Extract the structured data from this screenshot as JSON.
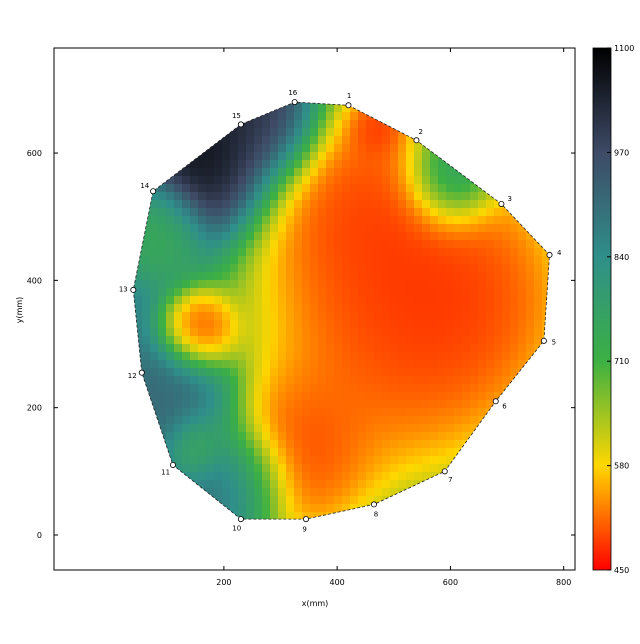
{
  "chart_data": {
    "type": "heatmap",
    "title": "",
    "xlabel": "x(mm)",
    "ylabel": "y(mm)",
    "xlim": [
      -100,
      820
    ],
    "ylim": [
      -55,
      765
    ],
    "x_ticks": [
      200,
      400,
      600,
      800
    ],
    "y_ticks": [
      0,
      200,
      400,
      600
    ],
    "grid": false,
    "colorbar": {
      "min": 450,
      "max": 1100,
      "ticks": [
        450,
        580,
        710,
        840,
        970,
        1100
      ],
      "colors": [
        "#ff0000",
        "#ffd700",
        "#3cb043",
        "#2f8f8a",
        "#3e4a66",
        "#000000"
      ]
    },
    "measurement_points": [
      {
        "label": "1",
        "x": 420,
        "y": 675
      },
      {
        "label": "2",
        "x": 540,
        "y": 620
      },
      {
        "label": "3",
        "x": 690,
        "y": 520
      },
      {
        "label": "4",
        "x": 775,
        "y": 440
      },
      {
        "label": "5",
        "x": 765,
        "y": 305
      },
      {
        "label": "6",
        "x": 680,
        "y": 210
      },
      {
        "label": "7",
        "x": 590,
        "y": 100
      },
      {
        "label": "8",
        "x": 465,
        "y": 48
      },
      {
        "label": "9",
        "x": 345,
        "y": 25
      },
      {
        "label": "10",
        "x": 230,
        "y": 25
      },
      {
        "label": "11",
        "x": 110,
        "y": 110
      },
      {
        "label": "12",
        "x": 55,
        "y": 255
      },
      {
        "label": "13",
        "x": 40,
        "y": 385
      },
      {
        "label": "14",
        "x": 75,
        "y": 540
      },
      {
        "label": "15",
        "x": 230,
        "y": 645
      },
      {
        "label": "16",
        "x": 325,
        "y": 680
      }
    ],
    "field_sources": [
      {
        "x": 500,
        "y": 320,
        "value": 450,
        "spread": 200
      },
      {
        "x": 620,
        "y": 380,
        "value": 450,
        "spread": 160
      },
      {
        "x": 440,
        "y": 520,
        "value": 450,
        "spread": 140
      },
      {
        "x": 160,
        "y": 320,
        "value": 450,
        "spread": 50
      },
      {
        "x": 470,
        "y": 640,
        "value": 450,
        "spread": 40
      },
      {
        "x": 330,
        "y": 120,
        "value": 450,
        "spread": 110
      },
      {
        "x": 180,
        "y": 590,
        "value": 1100,
        "spread": 90
      },
      {
        "x": 280,
        "y": 650,
        "value": 1050,
        "spread": 70
      },
      {
        "x": 600,
        "y": 560,
        "value": 900,
        "spread": 60
      },
      {
        "x": 120,
        "y": 200,
        "value": 920,
        "spread": 80
      },
      {
        "x": 220,
        "y": 80,
        "value": 950,
        "spread": 70
      },
      {
        "x": 90,
        "y": 480,
        "value": 720,
        "spread": 60
      },
      {
        "x": 150,
        "y": 140,
        "value": 680,
        "spread": 40
      }
    ]
  }
}
